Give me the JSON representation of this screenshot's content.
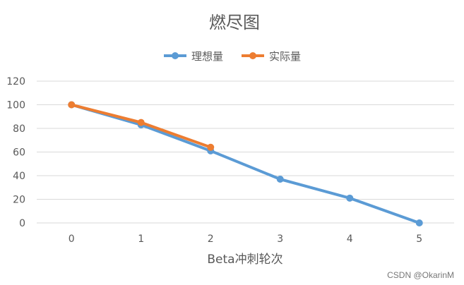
{
  "chart_data": {
    "type": "line",
    "title": "燃尽图",
    "xlabel": "Beta冲刺轮次",
    "ylabel": "",
    "x": [
      0,
      1,
      2,
      3,
      4,
      5
    ],
    "ylim": [
      0,
      120
    ],
    "yticks": [
      0,
      20,
      40,
      60,
      80,
      100,
      120
    ],
    "grid": true,
    "legend": "top-center",
    "series": [
      {
        "name": "理想量",
        "color": "#5b9bd5",
        "x": [
          0,
          1,
          2,
          3,
          4,
          5
        ],
        "values": [
          100,
          83,
          61,
          37,
          21,
          0
        ]
      },
      {
        "name": "实际量",
        "color": "#ed7d31",
        "x": [
          0,
          1,
          2
        ],
        "values": [
          100,
          85,
          64
        ]
      }
    ]
  },
  "watermark": "CSDN @OkarinM"
}
